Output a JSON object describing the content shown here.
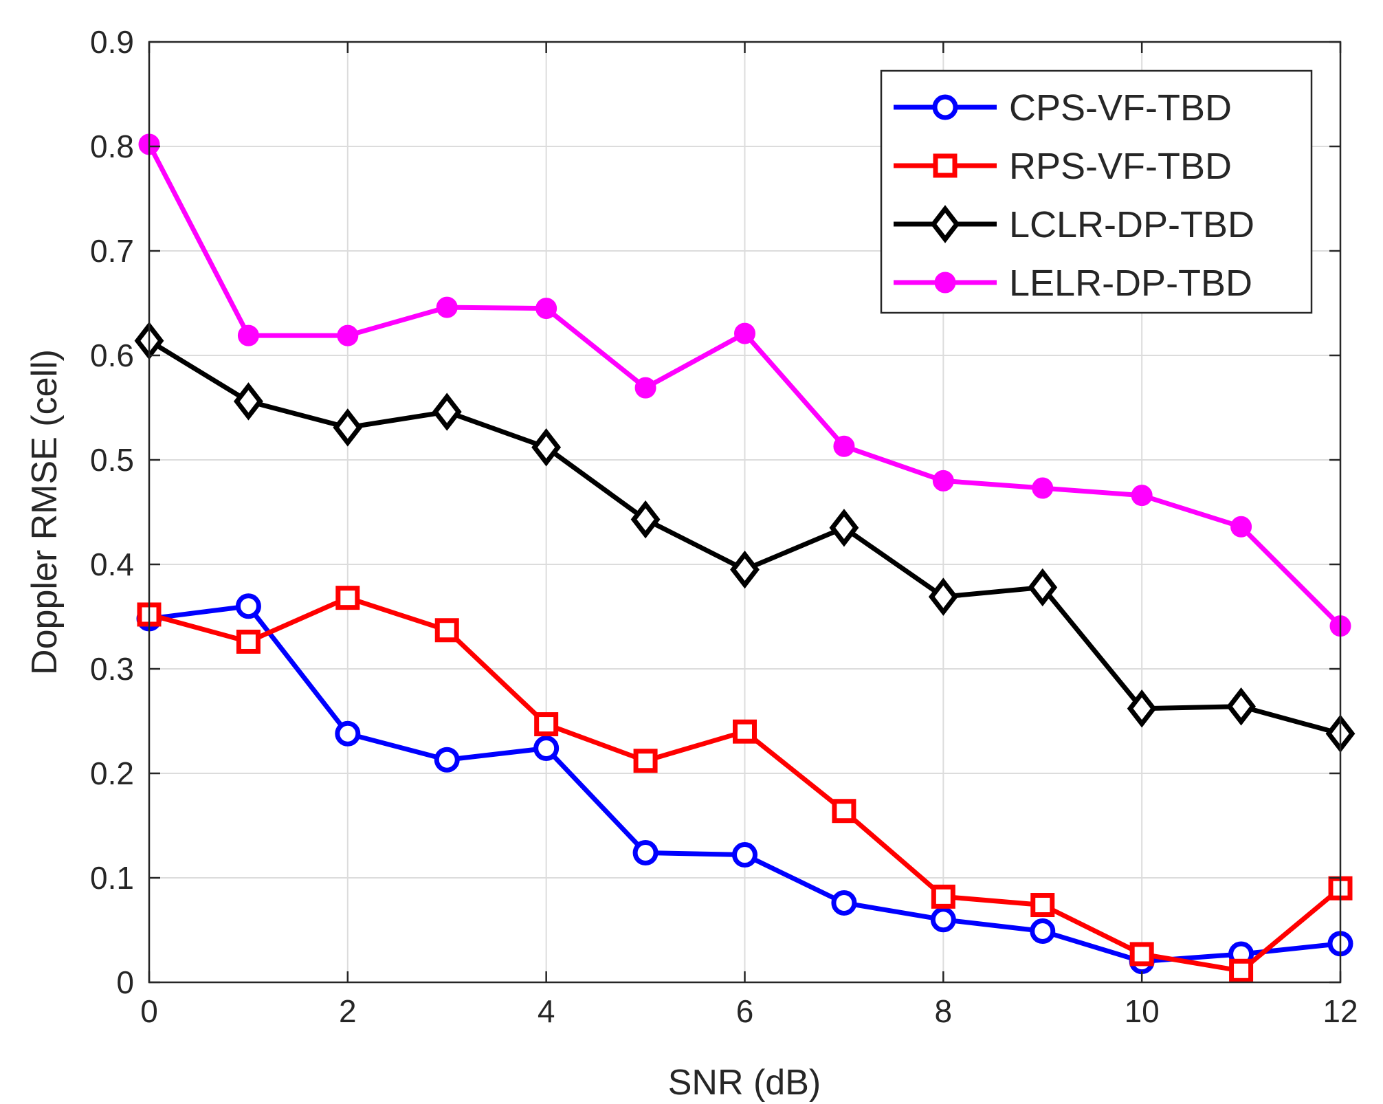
{
  "chart_data": {
    "type": "line",
    "title": "",
    "xlabel": "SNR (dB)",
    "ylabel": "Doppler RMSE (cell)",
    "xlim": [
      0,
      12
    ],
    "ylim": [
      0,
      0.9
    ],
    "xticks": [
      0,
      2,
      4,
      6,
      8,
      10,
      12
    ],
    "xtick_labels": [
      "0",
      "2",
      "4",
      "6",
      "8",
      "10",
      "12"
    ],
    "yticks": [
      0,
      0.1,
      0.2,
      0.3,
      0.4,
      0.5,
      0.6,
      0.7,
      0.8,
      0.9
    ],
    "ytick_labels": [
      "0",
      "0.1",
      "0.2",
      "0.3",
      "0.4",
      "0.5",
      "0.6",
      "0.7",
      "0.8",
      "0.9"
    ],
    "grid": true,
    "legend_position": "top-right",
    "x": [
      0,
      1,
      2,
      3,
      4,
      5,
      6,
      7,
      8,
      9,
      10,
      11,
      12
    ],
    "series": [
      {
        "name": "CPS-VF-TBD",
        "color": "#0000ff",
        "marker": "circle",
        "values": [
          0.348,
          0.36,
          0.238,
          0.213,
          0.224,
          0.124,
          0.122,
          0.076,
          0.06,
          0.049,
          0.02,
          0.027,
          0.037
        ]
      },
      {
        "name": "RPS-VF-TBD",
        "color": "#ff0000",
        "marker": "square",
        "values": [
          0.352,
          0.326,
          0.368,
          0.337,
          0.247,
          0.212,
          0.24,
          0.164,
          0.082,
          0.074,
          0.027,
          0.011,
          0.09
        ]
      },
      {
        "name": "LCLR-DP-TBD",
        "color": "#000000",
        "marker": "diamond",
        "values": [
          0.614,
          0.556,
          0.531,
          0.546,
          0.512,
          0.443,
          0.395,
          0.435,
          0.369,
          0.378,
          0.262,
          0.264,
          0.238
        ]
      },
      {
        "name": "LELR-DP-TBD",
        "color": "#ff00ff",
        "marker": "filled-circle",
        "values": [
          0.802,
          0.619,
          0.619,
          0.646,
          0.645,
          0.569,
          0.621,
          0.513,
          0.48,
          0.473,
          0.466,
          0.436,
          0.341
        ]
      }
    ]
  }
}
